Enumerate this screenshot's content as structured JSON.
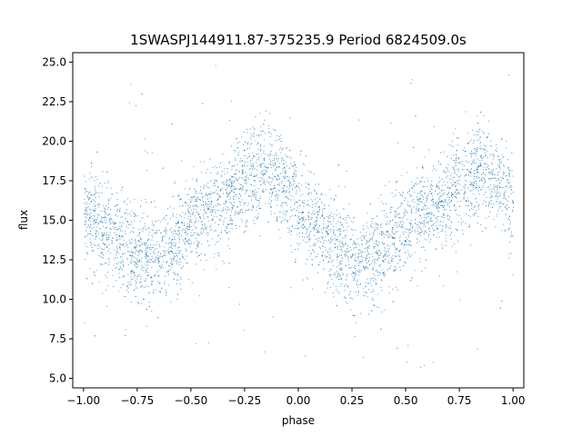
{
  "chart_data": {
    "type": "scatter",
    "title": "1SWASPJ144911.87-375235.9 Period 6824509.0s",
    "xlabel": "phase",
    "ylabel": "flux",
    "xlim": [
      -1.05,
      1.05
    ],
    "ylim": [
      4.4,
      25.6
    ],
    "xticks": [
      -1.0,
      -0.75,
      -0.5,
      -0.25,
      0.0,
      0.25,
      0.5,
      0.75,
      1.0
    ],
    "xtick_labels": [
      "−1.00",
      "−0.75",
      "−0.50",
      "−0.25",
      "0.00",
      "0.25",
      "0.50",
      "0.75",
      "1.00"
    ],
    "yticks": [
      5.0,
      7.5,
      10.0,
      12.5,
      15.0,
      17.5,
      20.0,
      22.5,
      25.0
    ],
    "ytick_labels": [
      "5.0",
      "7.5",
      "10.0",
      "12.5",
      "15.0",
      "17.5",
      "20.0",
      "22.5",
      "25.0"
    ],
    "grid": false,
    "legend": "none",
    "marker_color": "#1f77b4",
    "series": [
      {
        "trend_x": [
          -1.0,
          -0.95,
          -0.9,
          -0.85,
          -0.8,
          -0.75,
          -0.7,
          -0.65,
          -0.6,
          -0.55,
          -0.5,
          -0.45,
          -0.4,
          -0.35,
          -0.3,
          -0.25,
          -0.2,
          -0.15,
          -0.1,
          -0.05,
          0.0,
          0.05,
          0.1,
          0.15,
          0.2,
          0.25,
          0.3,
          0.35,
          0.4,
          0.45,
          0.5,
          0.55,
          0.6,
          0.65,
          0.7,
          0.75,
          0.8,
          0.85,
          0.9,
          0.95,
          1.0
        ],
        "trend_y": [
          15.3,
          15.0,
          14.5,
          13.8,
          13.1,
          12.8,
          12.7,
          12.8,
          13.2,
          13.9,
          14.7,
          15.2,
          15.6,
          16.1,
          16.7,
          17.3,
          17.9,
          18.2,
          17.8,
          16.9,
          15.9,
          15.0,
          14.3,
          13.6,
          13.0,
          12.7,
          12.6,
          12.8,
          13.3,
          14.0,
          14.8,
          15.3,
          15.6,
          16.0,
          16.6,
          17.2,
          17.8,
          18.1,
          17.9,
          17.0,
          15.9
        ],
        "scatter_sd": 1.5
      }
    ]
  }
}
